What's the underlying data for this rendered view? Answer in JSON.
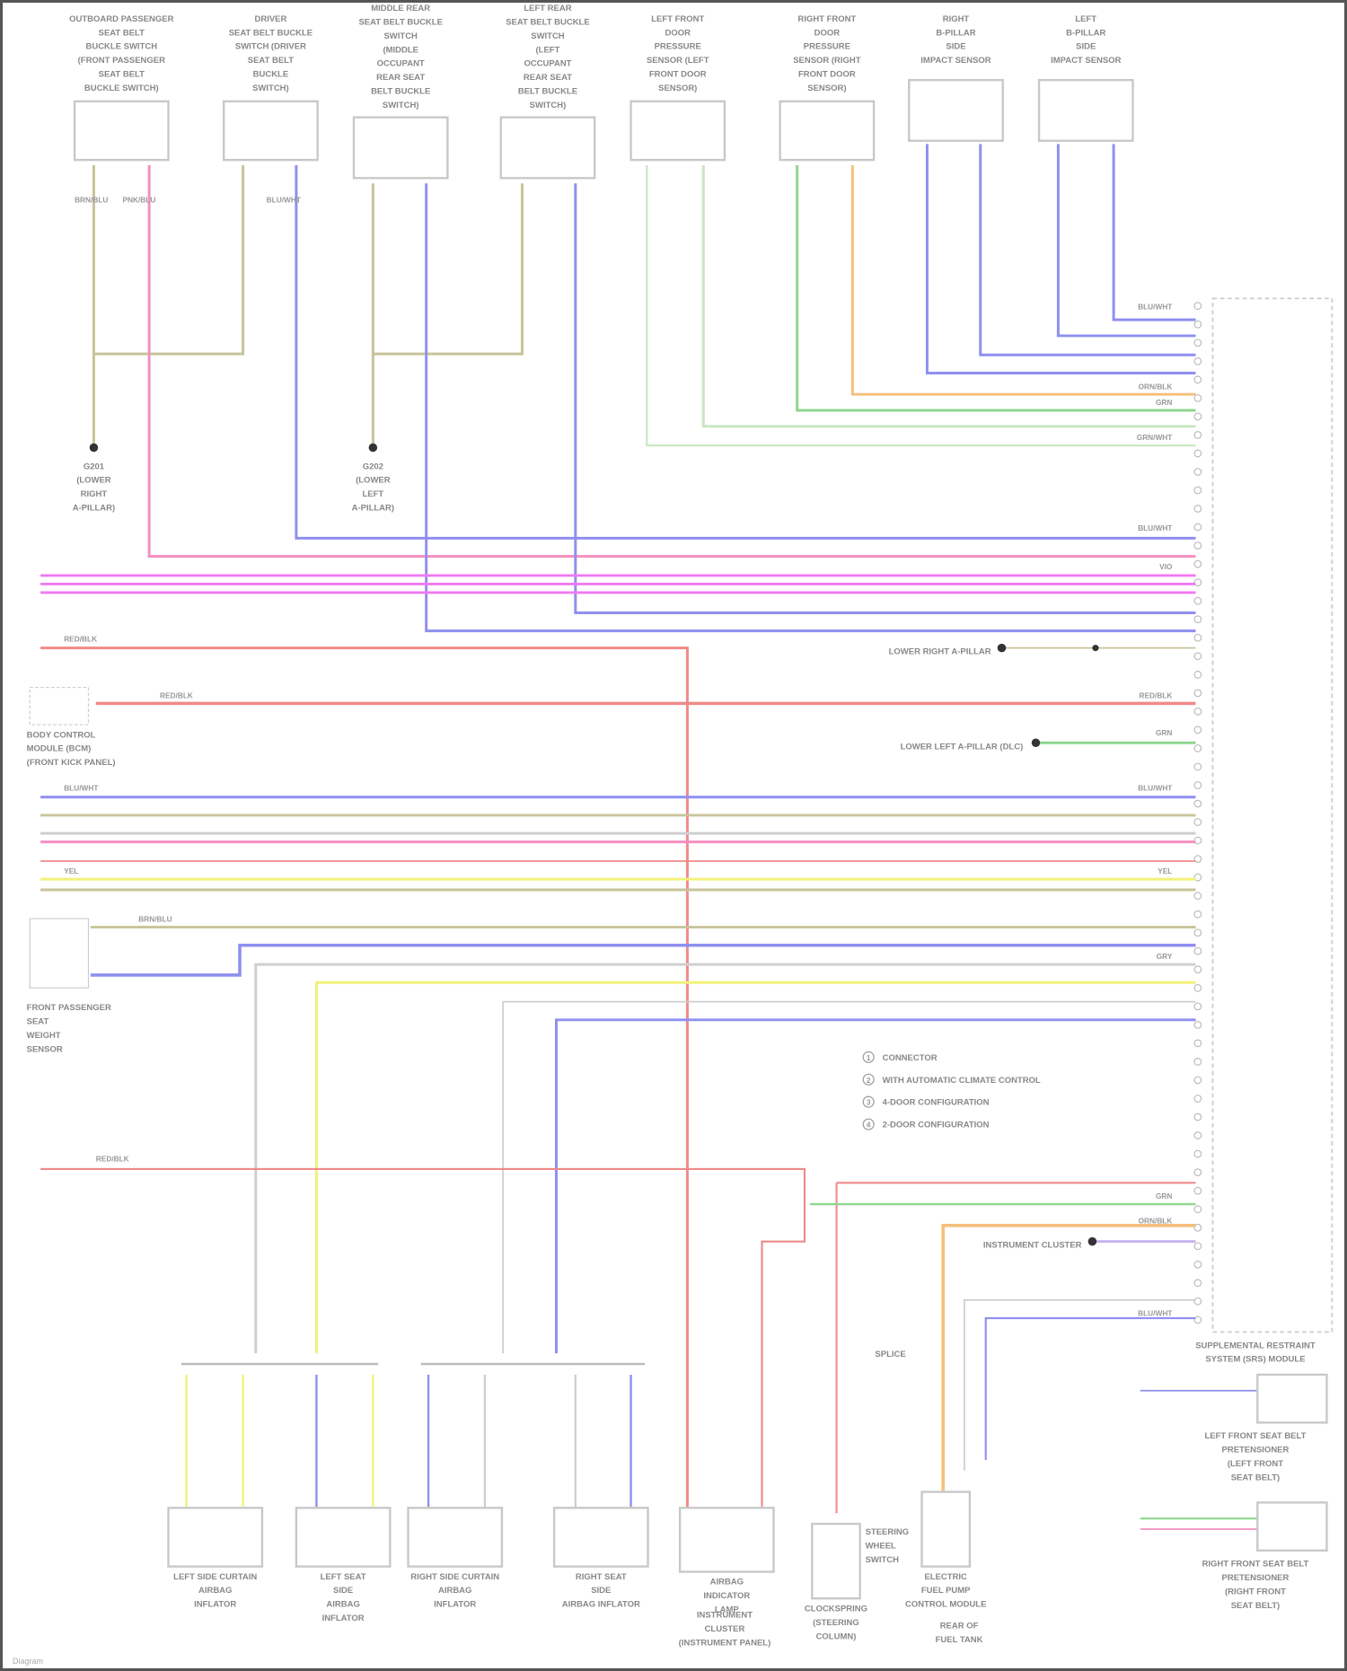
{
  "diagram": {
    "title": "",
    "colors": {
      "tan": "#c9c39a",
      "pink": "#f48fc0",
      "blue": "#8f8ff0",
      "magenta": "#f07af0",
      "red": "#f08a8a",
      "green": "#8fd68f",
      "lightgreen": "#c8e6c0",
      "orange": "#f6be7a",
      "yellow": "#f2f27a",
      "grey": "#cfcfcf",
      "lavender": "#c8b4f0",
      "black": "#333333"
    },
    "top_components": [
      {
        "lines": [
          "OUTBOARD PASSENGER",
          "SEAT BELT",
          "BUCKLE SWITCH",
          "(FRONT PASSENGER",
          "SEAT BELT",
          "BUCKLE SWITCH)"
        ]
      },
      {
        "lines": [
          "DRIVER",
          "SEAT BELT BUCKLE",
          "SWITCH (DRIVER",
          "SEAT BELT",
          "BUCKLE",
          "SWITCH)"
        ]
      },
      {
        "lines": [
          "MIDDLE REAR",
          "SEAT BELT BUCKLE",
          "SWITCH",
          "(MIDDLE",
          "OCCUPANT",
          "REAR SEAT",
          "BELT BUCKLE",
          "SWITCH)"
        ]
      },
      {
        "lines": [
          "LEFT REAR",
          "SEAT BELT BUCKLE",
          "SWITCH",
          "(LEFT",
          "OCCUPANT",
          "REAR SEAT",
          "BELT BUCKLE",
          "SWITCH)"
        ]
      },
      {
        "lines": [
          "LEFT FRONT",
          "DOOR",
          "PRESSURE",
          "SENSOR (LEFT",
          "FRONT DOOR",
          "SENSOR)"
        ]
      },
      {
        "lines": [
          "RIGHT FRONT",
          "DOOR",
          "PRESSURE",
          "SENSOR (RIGHT",
          "FRONT DOOR",
          "SENSOR)"
        ]
      },
      {
        "lines": [
          "RIGHT",
          "B-PILLAR",
          "SIDE",
          "IMPACT SENSOR"
        ]
      },
      {
        "lines": [
          "LEFT",
          "B-PILLAR",
          "SIDE",
          "IMPACT SENSOR"
        ]
      }
    ],
    "grounds": [
      {
        "lines": [
          "G201",
          "(LOWER",
          "RIGHT",
          "A-PILLAR)"
        ]
      },
      {
        "lines": [
          "G202",
          "(LOWER",
          "LEFT",
          "A-PILLAR)"
        ]
      }
    ],
    "left_components": [
      {
        "lines": [
          "BODY CONTROL",
          "MODULE (BCM)",
          "(FRONT KICK PANEL)"
        ]
      },
      {
        "lines": [
          "FRONT PASSENGER",
          "SEAT",
          "WEIGHT",
          "SENSOR"
        ]
      }
    ],
    "module": {
      "lines": [
        "SUPPLEMENTAL RESTRAINT",
        "SYSTEM (SRS) MODULE"
      ]
    },
    "legend": [
      {
        "symbol": "1",
        "text": "CONNECTOR"
      },
      {
        "symbol": "2",
        "text": "WITH AUTOMATIC CLIMATE CONTROL"
      },
      {
        "symbol": "3",
        "text": "4-DOOR CONFIGURATION"
      },
      {
        "symbol": "4",
        "text": "2-DOOR CONFIGURATION"
      }
    ],
    "side_notes": [
      {
        "text": "LOWER RIGHT A-PILLAR"
      },
      {
        "text": "LOWER LEFT A-PILLAR (DLC)"
      },
      {
        "text": "INSTRUMENT CLUSTER"
      },
      {
        "text": "SPLICE"
      }
    ],
    "bottom_components": [
      {
        "lines": [
          "LEFT SIDE CURTAIN",
          "AIRBAG",
          "INFLATOR"
        ]
      },
      {
        "lines": [
          "LEFT SEAT",
          "SIDE",
          "AIRBAG",
          "INFLATOR"
        ]
      },
      {
        "lines": [
          "RIGHT SIDE CURTAIN",
          "AIRBAG",
          "INFLATOR"
        ]
      },
      {
        "lines": [
          "RIGHT SEAT",
          "SIDE",
          "AIRBAG INFLATOR"
        ]
      },
      {
        "lines": [
          "AIRBAG",
          "INDICATOR",
          "LAMP"
        ]
      },
      {
        "lines": [
          "CLOCKSPRING",
          "(STEERING",
          "COLUMN)"
        ]
      },
      {
        "lines": [
          "ELECTRIC",
          "FUEL PUMP",
          "CONTROL MODULE"
        ]
      }
    ],
    "bottom_notes": [
      {
        "lines": [
          "INSTRUMENT",
          "CLUSTER",
          "(INSTRUMENT PANEL)"
        ]
      },
      {
        "lines": [
          "STEERING",
          "WHEEL",
          "SWITCH"
        ]
      },
      {
        "lines": [
          "REAR OF",
          "FUEL TANK"
        ]
      }
    ],
    "right_components": [
      {
        "lines": [
          "LEFT FRONT SEAT BELT",
          "PRETENSIONER",
          "(LEFT FRONT",
          "SEAT BELT)"
        ]
      },
      {
        "lines": [
          "RIGHT FRONT SEAT BELT",
          "PRETENSIONER",
          "(RIGHT FRONT",
          "SEAT BELT)"
        ]
      }
    ],
    "wire_labels": {
      "tan": "BRN/BLU",
      "pink": "PNK/BLU",
      "blue": "BLU/WHT",
      "magenta": "VIO",
      "red": "RED/BLK",
      "green": "GRN",
      "orange": "ORN/BLK",
      "yellow": "YEL",
      "grey": "GRY",
      "lightgreen": "GRN/WHT"
    },
    "footer": "Diagram"
  }
}
